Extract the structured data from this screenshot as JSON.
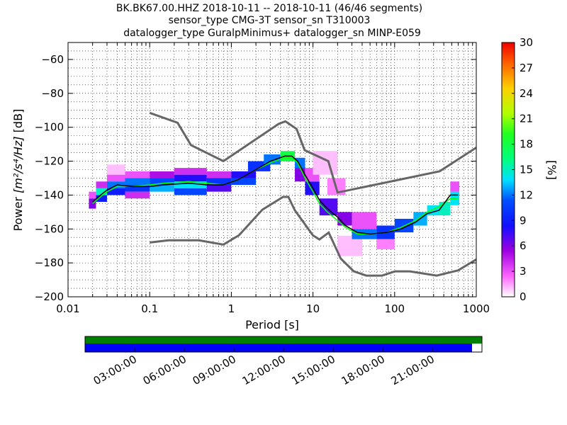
{
  "title_lines": [
    "BK.BK67.00.HHZ   2018-10-11 -- 2018-10-11  (46/46 segments)",
    "sensor_type CMG-3T sensor_sn T310003",
    "datalogger_type GuralpMinimus+ datalogger_sn MINP-E059"
  ],
  "chart_data": {
    "type": "heatmap",
    "xlabel": "Period [s]",
    "ylabel": "Power [m²/s⁴/Hz] [dB]",
    "ylabel_parts": {
      "prefix": "Power ",
      "math": "[m²/s⁴/Hz]",
      "suffix": " [dB]"
    },
    "xscale": "log",
    "xlim": [
      0.01,
      1000
    ],
    "ylim": [
      -200,
      -50
    ],
    "xticks": [
      0.01,
      0.1,
      1,
      10,
      100,
      1000
    ],
    "xtick_labels": [
      "0.01",
      "0.1",
      "1",
      "10",
      "100",
      "1000"
    ],
    "yticks": [
      -200,
      -180,
      -160,
      -140,
      -120,
      -100,
      -80,
      -60
    ],
    "ytick_labels": [
      "−200",
      "−180",
      "−160",
      "−140",
      "−120",
      "−100",
      "−80",
      "−60"
    ],
    "grid": "dotted",
    "colorbar": {
      "label": "[%]",
      "ticks": [
        0,
        3,
        6,
        9,
        12,
        15,
        18,
        21,
        24,
        27,
        30
      ],
      "range": [
        0,
        30
      ]
    },
    "ppsd_mode": [
      [
        0.02,
        -144
      ],
      [
        0.025,
        -140
      ],
      [
        0.03,
        -137
      ],
      [
        0.04,
        -134
      ],
      [
        0.06,
        -135
      ],
      [
        0.1,
        -135
      ],
      [
        0.15,
        -134
      ],
      [
        0.3,
        -133
      ],
      [
        0.5,
        -134
      ],
      [
        0.8,
        -134
      ],
      [
        1.2,
        -131
      ],
      [
        2,
        -125
      ],
      [
        3,
        -120
      ],
      [
        4.5,
        -117
      ],
      [
        5.5,
        -117
      ],
      [
        6.5,
        -120
      ],
      [
        8,
        -128
      ],
      [
        10,
        -136
      ],
      [
        12,
        -143
      ],
      [
        15,
        -148
      ],
      [
        20,
        -153
      ],
      [
        25,
        -158
      ],
      [
        35,
        -162
      ],
      [
        50,
        -163
      ],
      [
        80,
        -162
      ],
      [
        120,
        -160
      ],
      [
        180,
        -156
      ],
      [
        250,
        -151
      ],
      [
        350,
        -149
      ],
      [
        480,
        -140
      ],
      [
        600,
        -140
      ]
    ],
    "ppsd_mean": [
      [
        0.02,
        -145
      ],
      [
        0.025,
        -141
      ],
      [
        0.03,
        -138
      ],
      [
        0.04,
        -135
      ],
      [
        0.06,
        -135
      ],
      [
        0.1,
        -134
      ],
      [
        0.15,
        -133
      ],
      [
        0.3,
        -132
      ],
      [
        0.5,
        -133
      ],
      [
        0.8,
        -134
      ],
      [
        1.2,
        -131
      ],
      [
        2,
        -125
      ],
      [
        3,
        -121
      ],
      [
        4.5,
        -118
      ],
      [
        5.5,
        -118
      ],
      [
        6.5,
        -121
      ],
      [
        8,
        -130
      ],
      [
        10,
        -138
      ],
      [
        12,
        -145
      ],
      [
        15,
        -150
      ],
      [
        20,
        -155
      ],
      [
        25,
        -159
      ],
      [
        35,
        -163
      ],
      [
        50,
        -163
      ],
      [
        80,
        -162
      ],
      [
        120,
        -159
      ],
      [
        180,
        -155
      ],
      [
        250,
        -150
      ],
      [
        350,
        -147
      ],
      [
        480,
        -142
      ],
      [
        600,
        -142
      ]
    ],
    "nhnm": [
      [
        0.1,
        -91.5
      ],
      [
        0.22,
        -97.4
      ],
      [
        0.32,
        -110.5
      ],
      [
        0.8,
        -120
      ],
      [
        3.8,
        -98
      ],
      [
        4.6,
        -96.5
      ],
      [
        6.3,
        -101
      ],
      [
        7.9,
        -113.5
      ],
      [
        15.4,
        -120
      ],
      [
        20,
        -138.5
      ],
      [
        354.8,
        -126
      ],
      [
        1000,
        -112
      ]
    ],
    "nlnm": [
      [
        0.1,
        -168
      ],
      [
        0.17,
        -166.7
      ],
      [
        0.4,
        -166.7
      ],
      [
        0.8,
        -169.2
      ],
      [
        1.24,
        -163.7
      ],
      [
        2.4,
        -148.6
      ],
      [
        4.3,
        -141.1
      ],
      [
        5,
        -141.1
      ],
      [
        6,
        -149
      ],
      [
        10,
        -163.8
      ],
      [
        12,
        -166.2
      ],
      [
        15.6,
        -162.1
      ],
      [
        21.9,
        -177.5
      ],
      [
        31.6,
        -185
      ],
      [
        45,
        -187.5
      ],
      [
        70,
        -187.5
      ],
      [
        101,
        -185
      ],
      [
        154,
        -185
      ],
      [
        328,
        -187.5
      ],
      [
        600,
        -184.4
      ],
      [
        1000,
        -178
      ]
    ],
    "density_cells": [
      {
        "x": [
          0.018,
          0.022
        ],
        "y": [
          -148,
          -142
        ],
        "v": 6
      },
      {
        "x": [
          0.018,
          0.022
        ],
        "y": [
          -142,
          -138
        ],
        "v": 3
      },
      {
        "x": [
          0.022,
          0.03
        ],
        "y": [
          -144,
          -140
        ],
        "v": 9
      },
      {
        "x": [
          0.022,
          0.03
        ],
        "y": [
          -140,
          -136
        ],
        "v": 15
      },
      {
        "x": [
          0.022,
          0.03
        ],
        "y": [
          -136,
          -132
        ],
        "v": 4
      },
      {
        "x": [
          0.03,
          0.05
        ],
        "y": [
          -128,
          -122
        ],
        "v": 1
      },
      {
        "x": [
          0.03,
          0.05
        ],
        "y": [
          -132,
          -128
        ],
        "v": 3
      },
      {
        "x": [
          0.03,
          0.05
        ],
        "y": [
          -136,
          -132
        ],
        "v": 12
      },
      {
        "x": [
          0.03,
          0.05
        ],
        "y": [
          -140,
          -136
        ],
        "v": 9
      },
      {
        "x": [
          0.05,
          0.1
        ],
        "y": [
          -130,
          -126
        ],
        "v": 3
      },
      {
        "x": [
          0.05,
          0.1
        ],
        "y": [
          -134,
          -130
        ],
        "v": 12
      },
      {
        "x": [
          0.05,
          0.1
        ],
        "y": [
          -138,
          -134
        ],
        "v": 10
      },
      {
        "x": [
          0.05,
          0.1
        ],
        "y": [
          -142,
          -138
        ],
        "v": 4
      },
      {
        "x": [
          0.1,
          0.2
        ],
        "y": [
          -130,
          -126
        ],
        "v": 5
      },
      {
        "x": [
          0.1,
          0.2
        ],
        "y": [
          -134,
          -130
        ],
        "v": 11
      },
      {
        "x": [
          0.1,
          0.2
        ],
        "y": [
          -138,
          -134
        ],
        "v": 13
      },
      {
        "x": [
          0.2,
          0.5
        ],
        "y": [
          -128,
          -124
        ],
        "v": 4
      },
      {
        "x": [
          0.2,
          0.5
        ],
        "y": [
          -132,
          -128
        ],
        "v": 8
      },
      {
        "x": [
          0.2,
          0.5
        ],
        "y": [
          -136,
          -132
        ],
        "v": 14
      },
      {
        "x": [
          0.2,
          0.5
        ],
        "y": [
          -140,
          -136
        ],
        "v": 11
      },
      {
        "x": [
          0.5,
          1
        ],
        "y": [
          -130,
          -126
        ],
        "v": 4
      },
      {
        "x": [
          0.5,
          1
        ],
        "y": [
          -134,
          -130
        ],
        "v": 10
      },
      {
        "x": [
          0.5,
          1
        ],
        "y": [
          -138,
          -134
        ],
        "v": 7
      },
      {
        "x": [
          1,
          2
        ],
        "y": [
          -130,
          -126
        ],
        "v": 8
      },
      {
        "x": [
          1,
          2
        ],
        "y": [
          -134,
          -130
        ],
        "v": 11
      },
      {
        "x": [
          1.6,
          3
        ],
        "y": [
          -126,
          -120
        ],
        "v": 10
      },
      {
        "x": [
          2.5,
          4
        ],
        "y": [
          -122,
          -116
        ],
        "v": 12
      },
      {
        "x": [
          4,
          6
        ],
        "y": [
          -120,
          -114
        ],
        "v": 18
      },
      {
        "x": [
          6,
          8
        ],
        "y": [
          -124,
          -118
        ],
        "v": 12
      },
      {
        "x": [
          6,
          8
        ],
        "y": [
          -132,
          -124
        ],
        "v": 6
      },
      {
        "x": [
          8,
          12
        ],
        "y": [
          -140,
          -132
        ],
        "v": 8
      },
      {
        "x": [
          8,
          12
        ],
        "y": [
          -132,
          -124
        ],
        "v": 3
      },
      {
        "x": [
          10,
          20
        ],
        "y": [
          -128,
          -114
        ],
        "v": 1
      },
      {
        "x": [
          12,
          20
        ],
        "y": [
          -152,
          -142
        ],
        "v": 7
      },
      {
        "x": [
          15,
          25
        ],
        "y": [
          -140,
          -130
        ],
        "v": 2
      },
      {
        "x": [
          20,
          30
        ],
        "y": [
          -158,
          -150
        ],
        "v": 6
      },
      {
        "x": [
          20,
          40
        ],
        "y": [
          -176,
          -164
        ],
        "v": 1
      },
      {
        "x": [
          30,
          60
        ],
        "y": [
          -166,
          -160
        ],
        "v": 12
      },
      {
        "x": [
          30,
          60
        ],
        "y": [
          -160,
          -150
        ],
        "v": 3
      },
      {
        "x": [
          60,
          100
        ],
        "y": [
          -166,
          -158
        ],
        "v": 10
      },
      {
        "x": [
          60,
          100
        ],
        "y": [
          -172,
          -166
        ],
        "v": 2
      },
      {
        "x": [
          100,
          170
        ],
        "y": [
          -162,
          -154
        ],
        "v": 11
      },
      {
        "x": [
          170,
          250
        ],
        "y": [
          -158,
          -150
        ],
        "v": 13
      },
      {
        "x": [
          250,
          350
        ],
        "y": [
          -152,
          -146
        ],
        "v": 14
      },
      {
        "x": [
          350,
          480
        ],
        "y": [
          -152,
          -144
        ],
        "v": 15
      },
      {
        "x": [
          480,
          620
        ],
        "y": [
          -146,
          -138
        ],
        "v": 14
      },
      {
        "x": [
          480,
          620
        ],
        "y": [
          -138,
          -132
        ],
        "v": 3
      }
    ]
  },
  "time_axis": {
    "labels": [
      "03:00:00",
      "06:00:00",
      "09:00:00",
      "12:00:00",
      "15:00:00",
      "18:00:00",
      "21:00:00"
    ],
    "coverage_fraction": 0.975,
    "colors": {
      "top_bar": "#008000",
      "coverage_bar": "#0000ff",
      "frame": "#000000"
    }
  },
  "colors": {
    "nlnm_nhnm": "#666666",
    "mode_line": "#000000",
    "mean_line": "#00ff00"
  }
}
